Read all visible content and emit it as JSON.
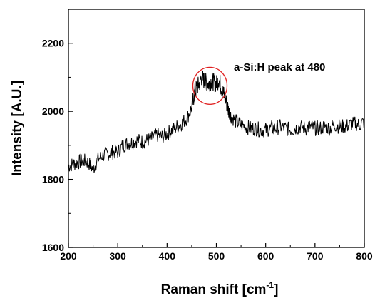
{
  "chart_data": {
    "type": "line",
    "title": "",
    "xlabel": "Raman shift [cm",
    "xlabel_sup": "-1",
    "xlabel_suffix": "]",
    "ylabel": "Intensity [A.U.]",
    "xlim": [
      200,
      800
    ],
    "ylim": [
      1600,
      2300
    ],
    "x_ticks": [
      200,
      300,
      400,
      500,
      600,
      700,
      800
    ],
    "y_ticks": [
      1600,
      1800,
      2000,
      2200
    ],
    "grid": false,
    "legend": "none",
    "line_color": "#000000",
    "annotation": {
      "text": "a-Si:H peak at 480",
      "circle_center": [
        487,
        2075
      ],
      "circle_color": "#e02020"
    },
    "series": [
      {
        "x": [
          200,
          210,
          220,
          230,
          240,
          250,
          260,
          270,
          280,
          290,
          300,
          310,
          320,
          330,
          340,
          350,
          360,
          370,
          380,
          390,
          400,
          410,
          420,
          430,
          440,
          450,
          455,
          460,
          465,
          470,
          475,
          480,
          485,
          490,
          495,
          500,
          505,
          510,
          515,
          520,
          525,
          530,
          540,
          550,
          560,
          570,
          580,
          590,
          600,
          610,
          620,
          630,
          640,
          650,
          660,
          670,
          680,
          690,
          700,
          710,
          720,
          730,
          740,
          750,
          760,
          770,
          780,
          790,
          800
        ],
        "values": [
          1840,
          1845,
          1850,
          1855,
          1850,
          1830,
          1860,
          1870,
          1875,
          1880,
          1880,
          1900,
          1905,
          1910,
          1915,
          1910,
          1915,
          1920,
          1930,
          1925,
          1935,
          1945,
          1955,
          1965,
          1980,
          2010,
          2050,
          2070,
          2080,
          2100,
          2090,
          2085,
          2080,
          2090,
          2085,
          2080,
          2095,
          2070,
          2050,
          2030,
          2000,
          1985,
          1970,
          1960,
          1955,
          1950,
          1950,
          1945,
          1945,
          1950,
          1950,
          1955,
          1950,
          1945,
          1950,
          1955,
          1950,
          1955,
          1950,
          1950,
          1955,
          1950,
          1960,
          1955,
          1955,
          1960,
          1965,
          1960,
          1970
        ]
      }
    ]
  }
}
